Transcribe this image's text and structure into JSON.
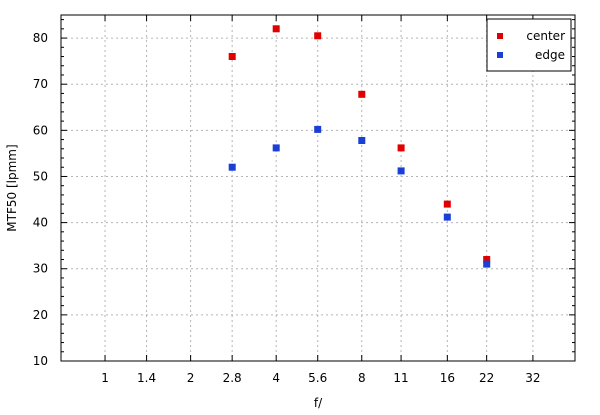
{
  "chart_data": {
    "type": "scatter",
    "title": "",
    "xlabel": "f/",
    "ylabel": "MTF50 [lpmm]",
    "x_scale": "log",
    "x_ticks": [
      "1",
      "1.4",
      "2",
      "2.8",
      "4",
      "5.6",
      "8",
      "11",
      "16",
      "22",
      "32"
    ],
    "x_tick_values": [
      1,
      1.4,
      2,
      2.8,
      4,
      5.6,
      8,
      11,
      16,
      22,
      32
    ],
    "xlim": [
      0.7,
      45
    ],
    "ylim": [
      10,
      85
    ],
    "y_ticks": [
      10,
      20,
      30,
      40,
      50,
      60,
      70,
      80
    ],
    "grid": true,
    "legend_position": "top-right",
    "series": [
      {
        "name": "center",
        "color": "#e00000",
        "x": [
          2.8,
          4,
          5.6,
          8,
          11,
          16,
          22
        ],
        "y": [
          76,
          82,
          80.5,
          67.8,
          56.2,
          44,
          32
        ]
      },
      {
        "name": "edge",
        "color": "#1a3fd6",
        "x": [
          2.8,
          4,
          5.6,
          8,
          11,
          16,
          22
        ],
        "y": [
          52,
          56.2,
          60.2,
          57.8,
          51.2,
          41.2,
          31
        ]
      }
    ]
  }
}
